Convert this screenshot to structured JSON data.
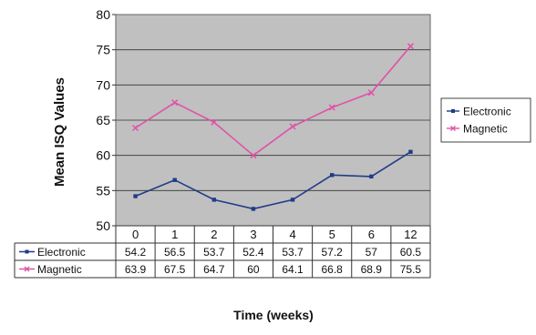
{
  "chart_data": {
    "type": "line",
    "ylabel": "Mean ISQ Values",
    "xlabel": "Time (weeks)",
    "categories": [
      "0",
      "1",
      "2",
      "3",
      "4",
      "5",
      "6",
      "12"
    ],
    "ylim": [
      50,
      80
    ],
    "yticks": [
      "50",
      "55",
      "60",
      "65",
      "70",
      "75",
      "80"
    ],
    "grid": true,
    "legend_position": "right",
    "data_table": true,
    "plot_background": "#c0c0c0",
    "series": [
      {
        "name": "Electronic",
        "color": "#1f3c88",
        "values": [
          54.2,
          56.5,
          53.7,
          52.4,
          53.7,
          57.2,
          57,
          60.5
        ],
        "labels": [
          "54.2",
          "56.5",
          "53.7",
          "52.4",
          "53.7",
          "57.2",
          "57",
          "60.5"
        ]
      },
      {
        "name": "Magnetic",
        "color": "#e052a8",
        "values": [
          63.9,
          67.5,
          64.7,
          60,
          64.1,
          66.8,
          68.9,
          75.5
        ],
        "labels": [
          "63.9",
          "67.5",
          "64.7",
          "60",
          "64.1",
          "66.8",
          "68.9",
          "75.5"
        ]
      }
    ]
  }
}
